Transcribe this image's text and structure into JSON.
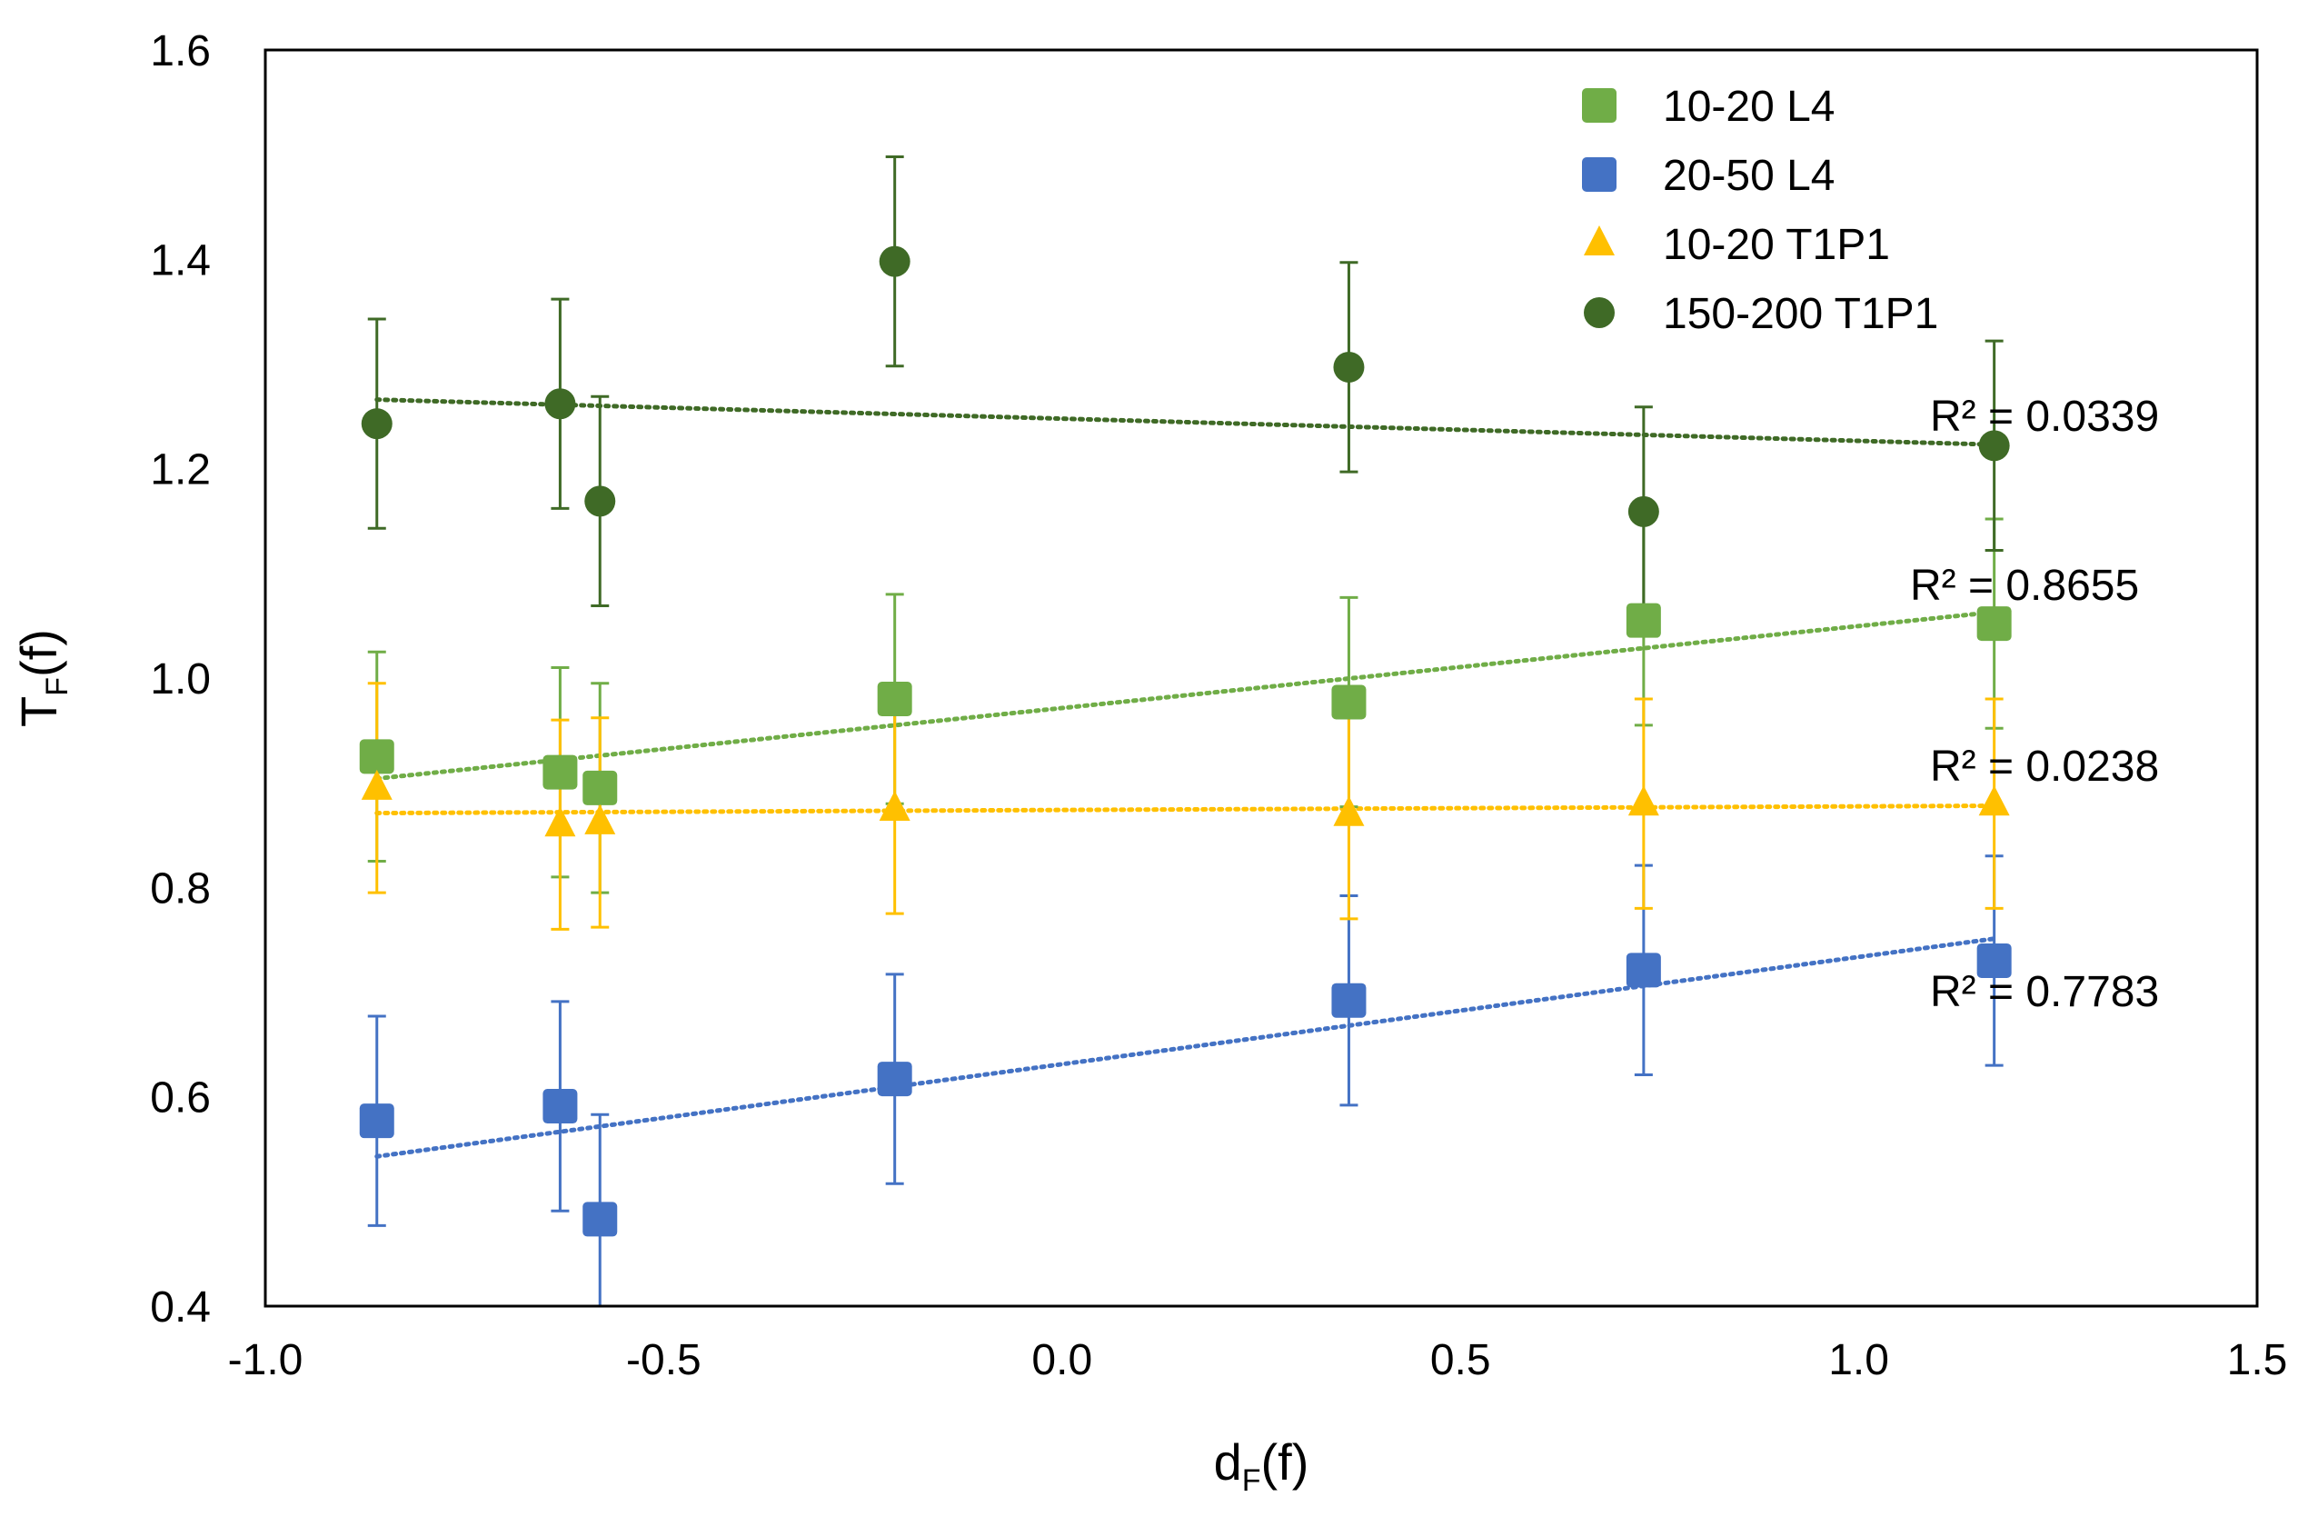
{
  "chart_data": {
    "type": "scatter",
    "title": "",
    "xlabel": {
      "main": "d",
      "sub": "F",
      "tail": "(f)"
    },
    "ylabel": {
      "main": "T",
      "sub": "F",
      "tail": "(f)"
    },
    "xlim": [
      -1.0,
      1.5
    ],
    "ylim": [
      0.4,
      1.6
    ],
    "x_ticks": [
      -1.0,
      -0.5,
      0.0,
      0.5,
      1.0,
      1.5
    ],
    "x_tick_labels": [
      "-1.0",
      "-0.5",
      "0.0",
      "0.5",
      "1.0",
      "1.5"
    ],
    "y_ticks": [
      0.4,
      0.6,
      0.8,
      1.0,
      1.2,
      1.4,
      1.6
    ],
    "y_tick_labels": [
      "0.4",
      "0.6",
      "0.8",
      "1.0",
      "1.2",
      "1.4",
      "1.6"
    ],
    "grid": false,
    "legend_position": "top-right",
    "series": [
      {
        "name": "10-20 L4",
        "marker": "square",
        "color": "#70ad47",
        "x": [
          -0.86,
          -0.63,
          -0.58,
          -0.21,
          0.36,
          0.73,
          1.17
        ],
        "y": [
          0.925,
          0.91,
          0.895,
          0.98,
          0.977,
          1.055,
          1.052
        ],
        "error": [
          0.1,
          0.1,
          0.1,
          0.1,
          0.1,
          0.1,
          0.1
        ],
        "trend": {
          "from": [
            -0.86,
            0.904
          ],
          "to": [
            1.17,
            1.063
          ]
        },
        "r2_label": "R² = 0.8655"
      },
      {
        "name": "20-50 L4",
        "marker": "square",
        "color": "#4472c4",
        "x": [
          -0.86,
          -0.63,
          -0.58,
          -0.21,
          0.36,
          0.73,
          1.17
        ],
        "y": [
          0.577,
          0.591,
          0.483,
          0.617,
          0.692,
          0.721,
          0.73
        ],
        "error": [
          0.1,
          0.1,
          0.1,
          0.1,
          0.1,
          0.1,
          0.1
        ],
        "trend": {
          "from": [
            -0.86,
            0.543
          ],
          "to": [
            1.17,
            0.751
          ]
        },
        "r2_label": "R² = 0.7783"
      },
      {
        "name": "10-20 T1P1",
        "marker": "triangle",
        "color": "#ffc000",
        "x": [
          -0.86,
          -0.63,
          -0.58,
          -0.21,
          0.36,
          0.73,
          1.17
        ],
        "y": [
          0.895,
          0.86,
          0.862,
          0.875,
          0.87,
          0.88,
          0.88
        ],
        "error": [
          0.1,
          0.1,
          0.1,
          0.1,
          0.1,
          0.1,
          0.1
        ],
        "trend": {
          "from": [
            -0.86,
            0.871
          ],
          "to": [
            1.17,
            0.878
          ]
        },
        "r2_label": "R² = 0.0238"
      },
      {
        "name": "150-200 T1P1",
        "marker": "circle",
        "color": "#3f6a26",
        "x": [
          -0.86,
          -0.63,
          -0.58,
          -0.21,
          0.36,
          0.73,
          1.17
        ],
        "y": [
          1.243,
          1.262,
          1.169,
          1.398,
          1.297,
          1.159,
          1.222
        ],
        "error": [
          0.1,
          0.1,
          0.1,
          0.1,
          0.1,
          0.1,
          0.1
        ],
        "trend": {
          "from": [
            -0.86,
            1.266
          ],
          "to": [
            1.17,
            1.223
          ]
        },
        "r2_label": "R² = 0.0339"
      }
    ]
  }
}
